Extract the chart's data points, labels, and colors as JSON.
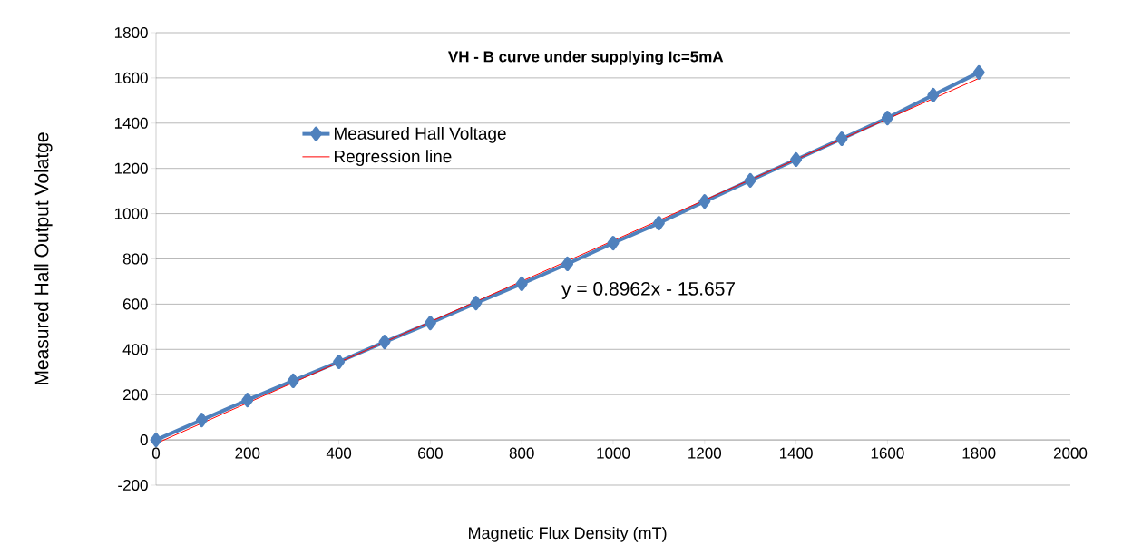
{
  "chart_data": {
    "type": "line",
    "title": "VH - B curve under  supplying Ic=5mA",
    "xlabel": "Magnetic  Flux Density (mT)",
    "ylabel": "Measured Hall Output Volatge",
    "x": [
      0,
      100,
      200,
      300,
      400,
      500,
      600,
      700,
      800,
      900,
      1000,
      1100,
      1200,
      1300,
      1400,
      1500,
      1600,
      1700,
      1800
    ],
    "series": [
      {
        "name": "Measured Hall Voltage",
        "color": "#4f81bd",
        "marker": "diamond",
        "values": [
          0,
          88,
          176,
          261,
          345,
          433,
          517,
          605,
          690,
          778,
          870,
          958,
          1054,
          1147,
          1239,
          1331,
          1423,
          1524,
          1624
        ]
      },
      {
        "name": "Regression line",
        "color": "#ff0000",
        "type": "line",
        "marker": "none",
        "x": [
          0,
          1800
        ],
        "values": [
          -16,
          1598
        ]
      }
    ],
    "xlim": [
      0,
      2000
    ],
    "xticks": [
      0,
      200,
      400,
      600,
      800,
      1000,
      1200,
      1400,
      1600,
      1800,
      2000
    ],
    "ylim": [
      -200,
      1800
    ],
    "yticks": [
      -200,
      0,
      200,
      400,
      600,
      800,
      1000,
      1200,
      1400,
      1600,
      1800
    ],
    "grid": "y",
    "legend": "top left",
    "annotations": [
      "y = 0.8962x - 15.657"
    ]
  }
}
